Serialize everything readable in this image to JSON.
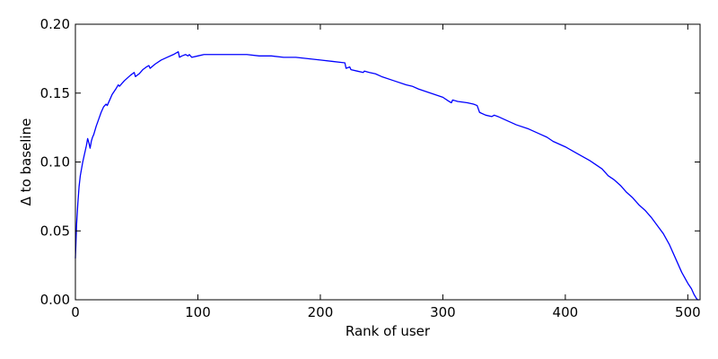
{
  "chart_data": {
    "type": "line",
    "title": "",
    "xlabel": "Rank of user",
    "ylabel": "Δ to baseline",
    "xlim": [
      0,
      510
    ],
    "ylim": [
      0.0,
      0.2
    ],
    "xticks": [
      0,
      100,
      200,
      300,
      400,
      500
    ],
    "xtick_labels": [
      "0",
      "100",
      "200",
      "300",
      "400",
      "500"
    ],
    "yticks": [
      0.0,
      0.05,
      0.1,
      0.15,
      0.2
    ],
    "ytick_labels": [
      "0.00",
      "0.05",
      "0.10",
      "0.15",
      "0.20"
    ],
    "grid": false,
    "series": [
      {
        "color": "#0000ff",
        "x": [
          0,
          1,
          2,
          3,
          4,
          5,
          6,
          7,
          8,
          9,
          10,
          11,
          12,
          13,
          14,
          15,
          17,
          19,
          21,
          23,
          25,
          26,
          28,
          30,
          33,
          35,
          36,
          40,
          45,
          48,
          49,
          52,
          55,
          58,
          60,
          61,
          65,
          70,
          75,
          80,
          84,
          85,
          87,
          90,
          92,
          93,
          95,
          100,
          105,
          110,
          115,
          120,
          130,
          140,
          150,
          160,
          170,
          180,
          190,
          200,
          210,
          220,
          221,
          224,
          225,
          230,
          235,
          236,
          240,
          245,
          250,
          260,
          270,
          275,
          280,
          290,
          300,
          305,
          307,
          308,
          312,
          320,
          325,
          328,
          330,
          335,
          340,
          342,
          345,
          350,
          360,
          370,
          380,
          385,
          390,
          400,
          410,
          420,
          425,
          430,
          435,
          440,
          445,
          450,
          455,
          460,
          465,
          470,
          475,
          480,
          485,
          490,
          495,
          500,
          503,
          505,
          507,
          508,
          509
        ],
        "y": [
          0.03,
          0.055,
          0.07,
          0.082,
          0.09,
          0.095,
          0.1,
          0.104,
          0.108,
          0.112,
          0.117,
          0.114,
          0.11,
          0.115,
          0.118,
          0.12,
          0.126,
          0.131,
          0.136,
          0.14,
          0.142,
          0.141,
          0.145,
          0.149,
          0.153,
          0.156,
          0.155,
          0.159,
          0.163,
          0.165,
          0.162,
          0.164,
          0.167,
          0.169,
          0.17,
          0.168,
          0.171,
          0.174,
          0.176,
          0.178,
          0.18,
          0.176,
          0.177,
          0.178,
          0.177,
          0.178,
          0.176,
          0.177,
          0.178,
          0.178,
          0.178,
          0.178,
          0.178,
          0.178,
          0.177,
          0.177,
          0.176,
          0.176,
          0.175,
          0.174,
          0.173,
          0.172,
          0.168,
          0.169,
          0.167,
          0.166,
          0.165,
          0.166,
          0.165,
          0.164,
          0.162,
          0.159,
          0.156,
          0.155,
          0.153,
          0.15,
          0.147,
          0.144,
          0.143,
          0.145,
          0.144,
          0.143,
          0.142,
          0.141,
          0.136,
          0.134,
          0.133,
          0.134,
          0.133,
          0.131,
          0.127,
          0.124,
          0.12,
          0.118,
          0.115,
          0.111,
          0.106,
          0.101,
          0.098,
          0.095,
          0.09,
          0.087,
          0.083,
          0.078,
          0.074,
          0.069,
          0.065,
          0.06,
          0.054,
          0.048,
          0.04,
          0.03,
          0.02,
          0.012,
          0.008,
          0.004,
          0.001,
          0.0,
          0.0
        ]
      }
    ]
  }
}
